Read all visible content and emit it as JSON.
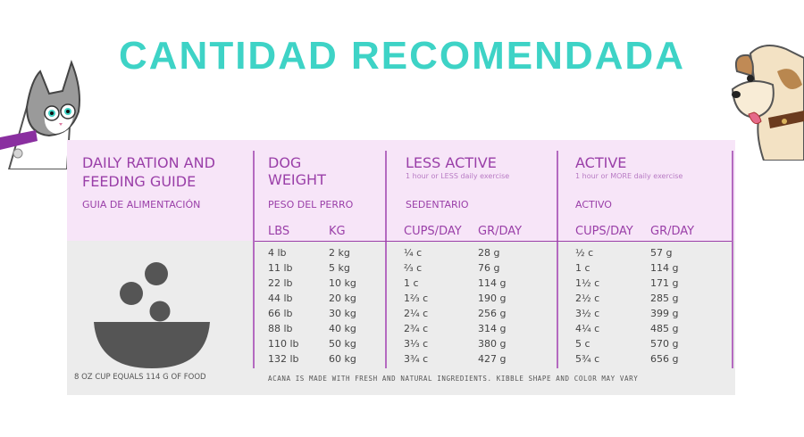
{
  "banner": {
    "title": "CANTIDAD RECOMENDADA"
  },
  "guide": {
    "title_line1": "DAILY RATION AND",
    "title_line2": "FEEDING GUIDE",
    "subtitle": "GUIA DE ALIMENTACIÓN",
    "footer_left": "8 OZ CUP EQUALS 114 G OF FOOD",
    "footer_right": "ACANA IS MADE WITH FRESH AND NATURAL INGREDIENTS. KIBBLE SHAPE AND COLOR MAY VARY"
  },
  "columns": {
    "dog": {
      "title_line1": "DOG",
      "title_line2": "WEIGHT",
      "spanish": "PESO DEL PERRO",
      "unit1": "LBS",
      "unit2": "KG"
    },
    "less_active": {
      "title": "LESS ACTIVE",
      "note": "1 hour or LESS daily exercise",
      "spanish": "SEDENTARIO",
      "unit1": "CUPS/DAY",
      "unit2": "GR/DAY"
    },
    "active": {
      "title": "ACTIVE",
      "note": "1 hour or MORE daily exercise",
      "spanish": "ACTIVO",
      "unit1": "CUPS/DAY",
      "unit2": "GR/DAY"
    }
  },
  "rows": [
    [
      "4 lb",
      "2 kg",
      "¼ c",
      "28 g",
      "½ c",
      "57 g"
    ],
    [
      "11 lb",
      "5 kg",
      "⅔ c",
      "76 g",
      "1 c",
      "114 g"
    ],
    [
      "22 lb",
      "10 kg",
      "1 c",
      "114 g",
      "1½ c",
      "171 g"
    ],
    [
      "44 lb",
      "20 kg",
      "1⅔ c",
      "190 g",
      "2½ c",
      "285 g"
    ],
    [
      "66 lb",
      "30 kg",
      "2¼ c",
      "256 g",
      "3½ c",
      "399 g"
    ],
    [
      "88 lb",
      "40 kg",
      "2¾ c",
      "314 g",
      "4¼ c",
      "485 g"
    ],
    [
      "110 lb",
      "50 kg",
      "3⅓ c",
      "380 g",
      "5 c",
      "570 g"
    ],
    [
      "132 lb",
      "60 kg",
      "3¾ c",
      "427 g",
      "5¾ c",
      "656 g"
    ]
  ],
  "colors": {
    "banner": "#3ed3c6",
    "accent": "#9a3fa8",
    "header_bg": "#f7e5f8",
    "table_bg": "#ececec",
    "kibble": "#555555"
  }
}
